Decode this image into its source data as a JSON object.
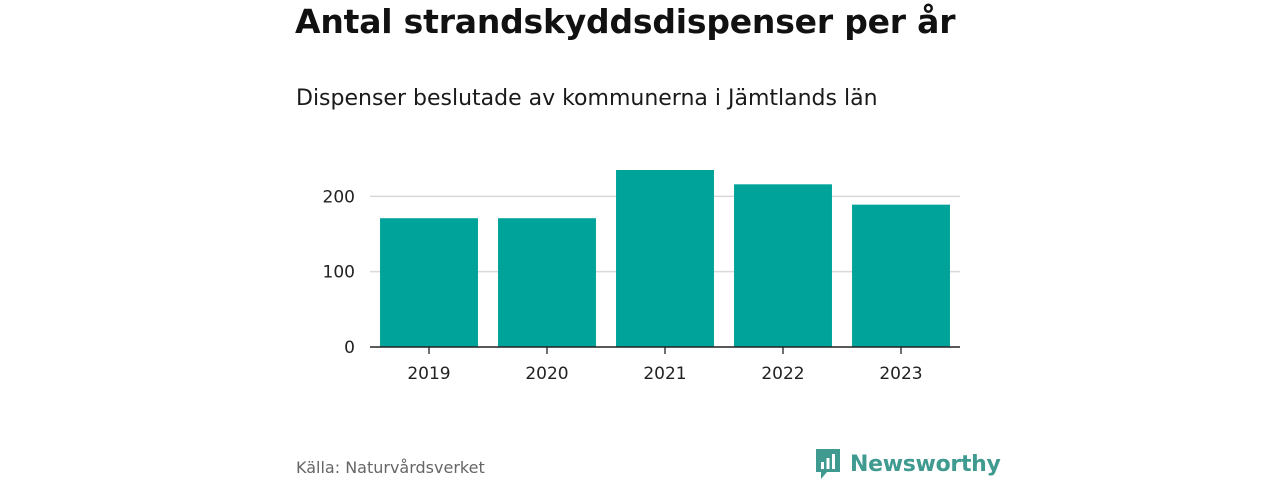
{
  "chart_data": {
    "type": "bar",
    "title": "Antal strandskyddsdispenser per år",
    "subtitle": "Dispenser beslutade av kommunerna i Jämtlands län",
    "categories": [
      "2019",
      "2020",
      "2021",
      "2022",
      "2023"
    ],
    "values": [
      171,
      171,
      235,
      216,
      189
    ],
    "ylim": [
      0,
      235
    ],
    "yticks": [
      0,
      100,
      200
    ],
    "ytick_labels": [
      "0",
      "100",
      "200"
    ],
    "xlabel": "",
    "ylabel": "",
    "grid": true,
    "bar_color": "#00a39a",
    "grid_color": "#d9d9d9",
    "axis_color": "#222222"
  },
  "source": "Källa: Naturvårdsverket",
  "brand": {
    "name": "Newsworthy",
    "icon": "bar-chart-speech-bubble-icon",
    "color": "#3f9a90"
  }
}
